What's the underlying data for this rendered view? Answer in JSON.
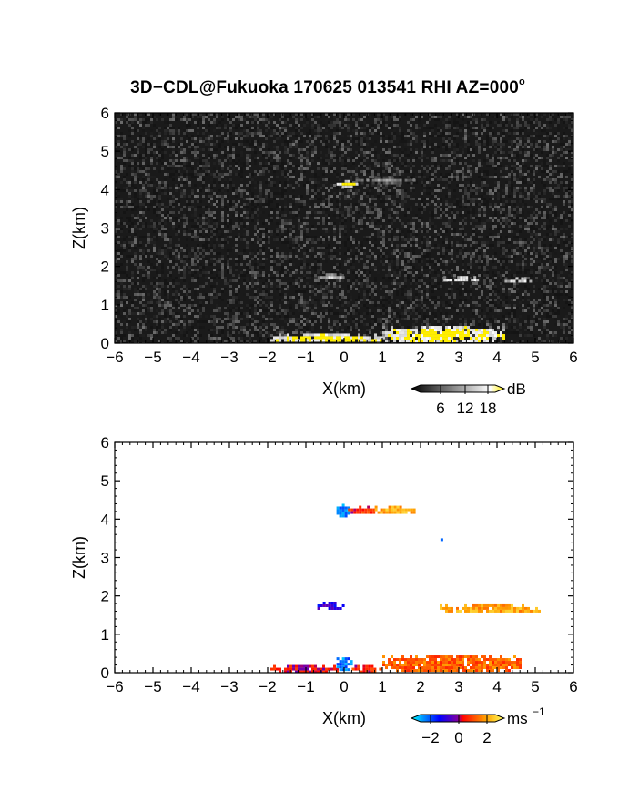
{
  "title": "3D−CDL@Fukuoka 170625 013541 RHI AZ=000",
  "title_degree": "o",
  "chart_data": [
    {
      "type": "heatmap",
      "panel": "reflectivity",
      "xlabel": "X(km)",
      "ylabel": "Z(km)",
      "xlim": [
        -6,
        6
      ],
      "ylim": [
        0,
        6
      ],
      "x_ticks": [
        "−6",
        "−5",
        "−4",
        "−3",
        "−2",
        "−1",
        "0",
        "1",
        "2",
        "3",
        "4",
        "5",
        "6"
      ],
      "y_ticks": [
        "0",
        "1",
        "2",
        "3",
        "4",
        "5",
        "6"
      ],
      "background": "noise",
      "colorbar": {
        "unit": "dB",
        "ticks": [
          "6",
          "12",
          "18"
        ],
        "range": [
          0,
          21
        ]
      },
      "features": [
        {
          "x": [
            -2.0,
            1.0
          ],
          "z": [
            0.05,
            0.25
          ],
          "value": 20
        },
        {
          "x": [
            1.0,
            4.2
          ],
          "z": [
            0.05,
            0.45
          ],
          "value": 20
        },
        {
          "x": [
            -0.2,
            0.3
          ],
          "z": [
            4.1,
            4.25
          ],
          "value": 20
        },
        {
          "x": [
            0.3,
            1.8
          ],
          "z": [
            4.2,
            4.35
          ],
          "value": 10
        },
        {
          "x": [
            -0.7,
            0.0
          ],
          "z": [
            1.7,
            1.82
          ],
          "value": 14
        },
        {
          "x": [
            2.6,
            3.5
          ],
          "z": [
            1.65,
            1.75
          ],
          "value": 18
        },
        {
          "x": [
            4.2,
            4.9
          ],
          "z": [
            1.62,
            1.72
          ],
          "value": 16
        }
      ]
    },
    {
      "type": "heatmap",
      "panel": "doppler velocity",
      "xlabel": "X(km)",
      "ylabel": "Z(km)",
      "xlim": [
        -6,
        6
      ],
      "ylim": [
        0,
        6
      ],
      "x_ticks": [
        "−6",
        "−5",
        "−4",
        "−3",
        "−2",
        "−1",
        "0",
        "1",
        "2",
        "3",
        "4",
        "5",
        "6"
      ],
      "y_ticks": [
        "0",
        "1",
        "2",
        "3",
        "4",
        "5",
        "6"
      ],
      "colorbar": {
        "unit": "ms",
        "unit_exp": "−1",
        "ticks": [
          "−2",
          "0",
          "2"
        ],
        "range": [
          -3,
          3
        ]
      },
      "features": [
        {
          "x": [
            -2.0,
            -0.2
          ],
          "z": [
            0.05,
            0.2
          ],
          "value": 0.3
        },
        {
          "x": [
            -0.2,
            0.2
          ],
          "z": [
            0.05,
            0.4
          ],
          "value": -2.0
        },
        {
          "x": [
            0.2,
            1.0
          ],
          "z": [
            0.05,
            0.2
          ],
          "value": 0.6
        },
        {
          "x": [
            1.0,
            4.6
          ],
          "z": [
            0.05,
            0.45
          ],
          "value": 1.2
        },
        {
          "x": [
            -0.2,
            0.1
          ],
          "z": [
            4.1,
            4.4
          ],
          "value": -2.2
        },
        {
          "x": [
            0.1,
            0.8
          ],
          "z": [
            4.15,
            4.35
          ],
          "value": 0.6
        },
        {
          "x": [
            0.8,
            1.8
          ],
          "z": [
            4.2,
            4.35
          ],
          "value": 2.0
        },
        {
          "x": [
            2.45,
            2.55
          ],
          "z": [
            3.4,
            3.5
          ],
          "value": -1.4
        },
        {
          "x": [
            -0.7,
            0.0
          ],
          "z": [
            1.7,
            1.85
          ],
          "value": -0.8
        },
        {
          "x": [
            2.5,
            5.1
          ],
          "z": [
            1.6,
            1.78
          ],
          "value": 1.9
        }
      ]
    }
  ]
}
